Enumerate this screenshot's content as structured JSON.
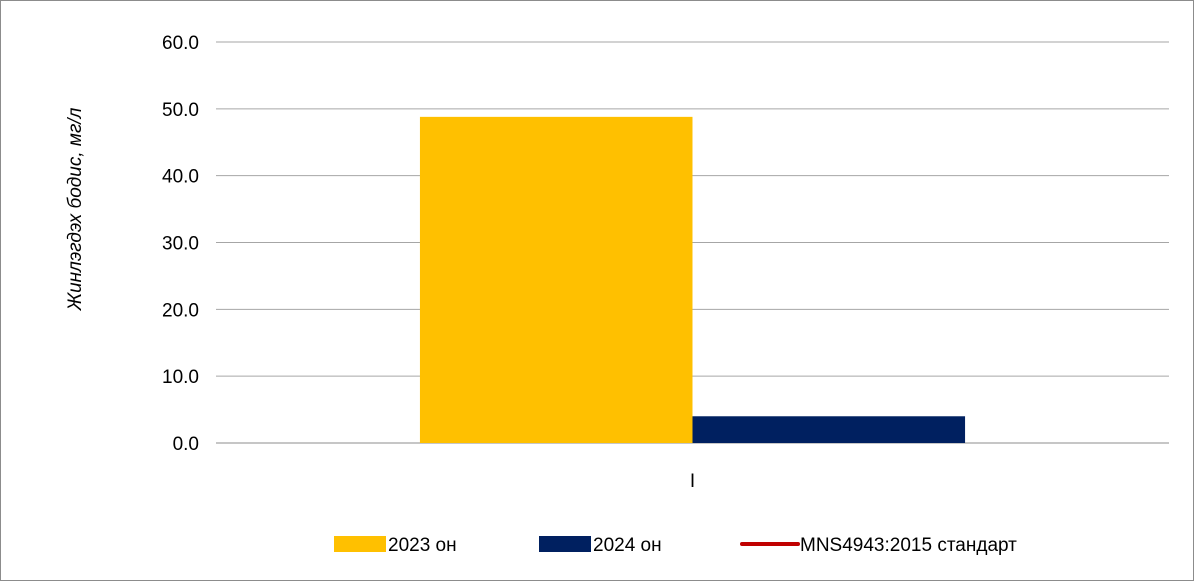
{
  "chart_data": {
    "type": "bar",
    "categories": [
      "I"
    ],
    "series": [
      {
        "name": "2023 он",
        "values": [
          48.8
        ],
        "color": "#FFC000"
      },
      {
        "name": "2024 он",
        "values": [
          4.0
        ],
        "color": "#002060"
      }
    ],
    "reference_line": {
      "name": "MNS4943:2015 стандарт",
      "color": "#C00000"
    },
    "ylabel": "Жинлэгдэх бодис, мг/л",
    "xlabel": "",
    "ylim": [
      0,
      60
    ],
    "yticks": [
      "0.0",
      "10.0",
      "20.0",
      "30.0",
      "40.0",
      "50.0",
      "60.0"
    ],
    "grid": true,
    "legend_position": "bottom"
  }
}
